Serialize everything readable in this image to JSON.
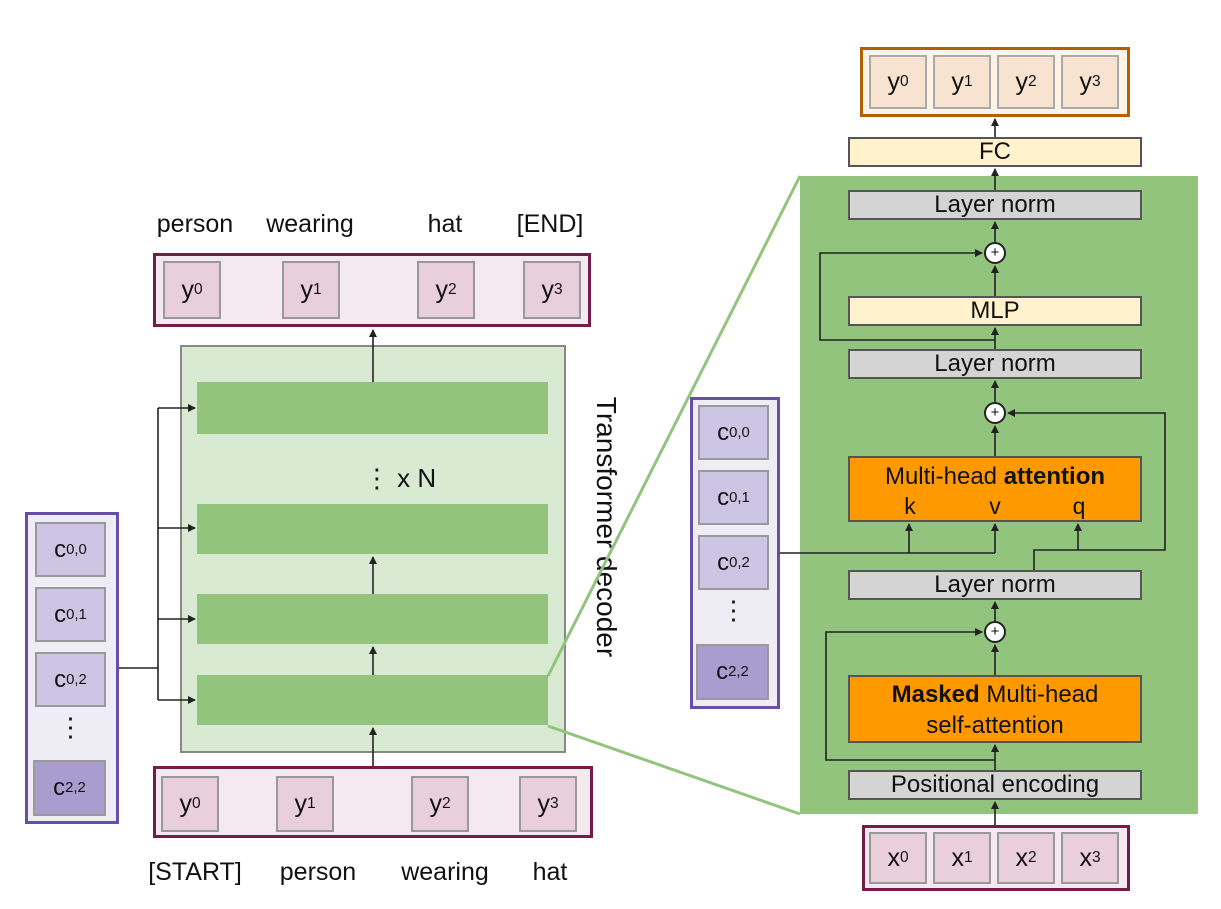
{
  "left": {
    "output_words": [
      "person",
      "wearing",
      "hat",
      "[END]"
    ],
    "input_words": [
      "[START]",
      "person",
      "wearing",
      "hat"
    ],
    "output_tokens": [
      {
        "base": "y",
        "sub": "0"
      },
      {
        "base": "y",
        "sub": "1"
      },
      {
        "base": "y",
        "sub": "2"
      },
      {
        "base": "y",
        "sub": "3"
      }
    ],
    "input_tokens": [
      {
        "base": "y",
        "sub": "0"
      },
      {
        "base": "y",
        "sub": "1"
      },
      {
        "base": "y",
        "sub": "2"
      },
      {
        "base": "y",
        "sub": "3"
      }
    ],
    "repeat_label": "⋮  x N",
    "decoder_label": "Transformer decoder",
    "features": [
      {
        "base": "c",
        "sub": "0,0"
      },
      {
        "base": "c",
        "sub": "0,1"
      },
      {
        "base": "c",
        "sub": "0,2"
      },
      {
        "base": "⋮",
        "sub": ""
      },
      {
        "base": "c",
        "sub": "2,2"
      }
    ]
  },
  "right": {
    "output_tokens": [
      {
        "base": "y",
        "sub": "0"
      },
      {
        "base": "y",
        "sub": "1"
      },
      {
        "base": "y",
        "sub": "2"
      },
      {
        "base": "y",
        "sub": "3"
      }
    ],
    "input_tokens": [
      {
        "base": "x",
        "sub": "0"
      },
      {
        "base": "x",
        "sub": "1"
      },
      {
        "base": "x",
        "sub": "2"
      },
      {
        "base": "x",
        "sub": "3"
      }
    ],
    "fc_label": "FC",
    "layer_norm_label": "Layer norm",
    "mlp_label": "MLP",
    "plus_symbol": "+",
    "cross_attention": {
      "plain": "Multi-head ",
      "bold": "attention",
      "k": "k",
      "v": "v",
      "q": "q"
    },
    "self_attention": {
      "bold": "Masked",
      "plain": " Multi-head",
      "line2": "self-attention"
    },
    "positional_encoding_label": "Positional encoding",
    "features": [
      {
        "base": "c",
        "sub": "0,0"
      },
      {
        "base": "c",
        "sub": "0,1"
      },
      {
        "base": "c",
        "sub": "0,2"
      },
      {
        "base": "⋮",
        "sub": ""
      },
      {
        "base": "c",
        "sub": "2,2"
      }
    ]
  },
  "colors": {
    "green": "#93c47d",
    "light_green": "#d9ead3",
    "token_pink": "#e8cfd9",
    "feature_purple": "#cdc5e4",
    "orange": "#ff9900",
    "cream": "#fff2cc",
    "maroon_border": "#741b47",
    "purple_border": "#674ea7",
    "brown_border": "#b45f06"
  }
}
